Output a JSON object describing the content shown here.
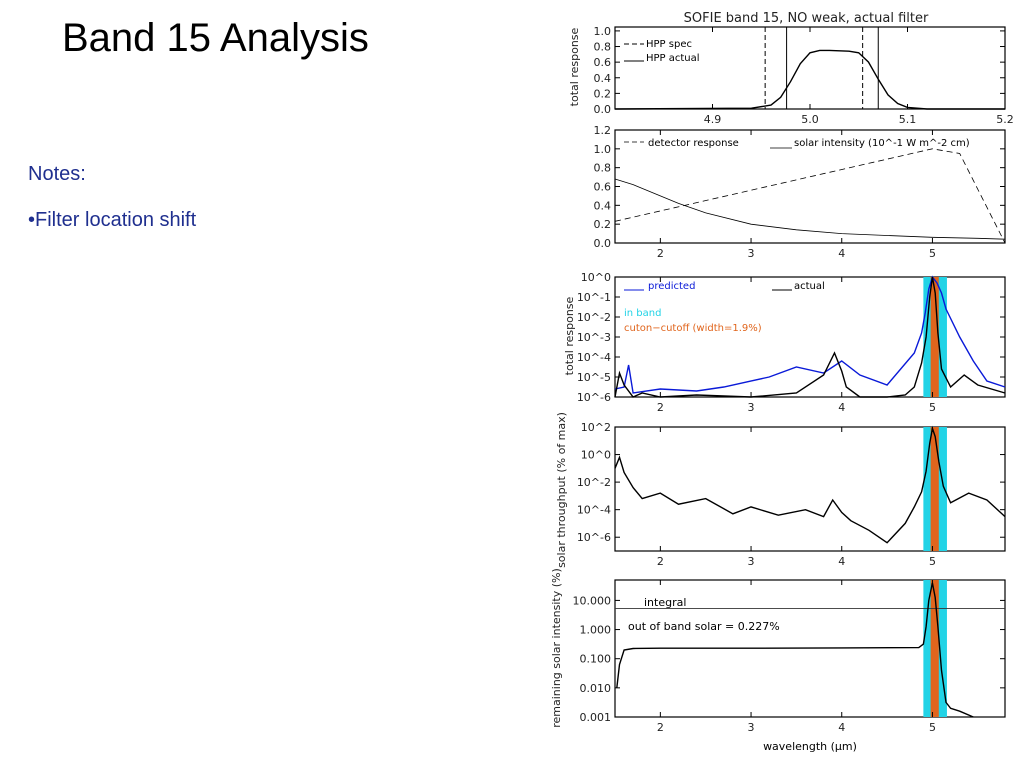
{
  "slide": {
    "title": "Band 15 Analysis",
    "notes_heading": "Notes:",
    "notes_bullet": "•Filter location shift"
  },
  "colors": {
    "predicted": "#0a1ad8",
    "in_band": "#22d3e6",
    "cutoff": "#e0651d",
    "actual": "#000000"
  },
  "chart_data": [
    {
      "type": "line",
      "title": "SOFIE band 15, NO weak, actual filter",
      "ylabel": "total response",
      "xlim": [
        4.8,
        5.2
      ],
      "ylim": [
        0,
        1.05
      ],
      "xticks": [
        "4.9",
        "5.0",
        "5.1",
        "5.2"
      ],
      "yticks": [
        "0.0",
        "0.2",
        "0.4",
        "0.6",
        "0.8",
        "1.0"
      ],
      "legend": [
        "HPP spec",
        "HPP actual"
      ],
      "vlines": {
        "spec": [
          4.954,
          5.054
        ],
        "actual": [
          4.976,
          5.07
        ]
      },
      "series": [
        {
          "name": "HPP actual",
          "x": [
            4.8,
            4.94,
            4.96,
            4.97,
            4.98,
            4.99,
            5.0,
            5.01,
            5.02,
            5.04,
            5.05,
            5.06,
            5.07,
            5.08,
            5.09,
            5.1,
            5.12,
            5.2
          ],
          "y": [
            0,
            0.01,
            0.05,
            0.15,
            0.35,
            0.58,
            0.72,
            0.75,
            0.75,
            0.74,
            0.72,
            0.6,
            0.38,
            0.18,
            0.07,
            0.02,
            0,
            0
          ]
        }
      ]
    },
    {
      "type": "line",
      "xlim": [
        1.5,
        5.8
      ],
      "ylim": [
        0,
        1.2
      ],
      "xticks": [
        "2",
        "3",
        "4",
        "5"
      ],
      "yticks": [
        "0.0",
        "0.2",
        "0.4",
        "0.6",
        "0.8",
        "1.0",
        "1.2"
      ],
      "legend": [
        "detector response",
        "solar intensity (10^-1 W m^-2 cm)"
      ],
      "series": [
        {
          "name": "detector response",
          "x": [
            1.5,
            5.0,
            5.3,
            5.8
          ],
          "y": [
            0.23,
            1.0,
            0.95,
            0.0
          ]
        },
        {
          "name": "solar intensity",
          "x": [
            1.5,
            1.7,
            2.0,
            2.2,
            2.5,
            3.0,
            3.5,
            4.0,
            4.5,
            5.0,
            5.5,
            5.8
          ],
          "y": [
            0.68,
            0.62,
            0.5,
            0.42,
            0.32,
            0.2,
            0.14,
            0.1,
            0.08,
            0.06,
            0.05,
            0.04
          ]
        }
      ]
    },
    {
      "type": "line",
      "ylabel": "total response",
      "scale": "log",
      "xlim": [
        1.5,
        5.8
      ],
      "ylim_exp": [
        -6,
        0
      ],
      "xticks": [
        "2",
        "3",
        "4",
        "5"
      ],
      "yticks": [
        "10^0",
        "10^-1",
        "10^-2",
        "10^-3",
        "10^-4",
        "10^-5",
        "10^-6"
      ],
      "legend": [
        "predicted",
        "actual"
      ],
      "labels": [
        "in band",
        "cuton−cutoff (width=1.9%)"
      ],
      "band": [
        4.9,
        5.16
      ],
      "cutoff": [
        4.98,
        5.07
      ],
      "series": [
        {
          "name": "predicted",
          "x": [
            1.5,
            1.6,
            1.65,
            1.7,
            2.0,
            2.4,
            2.7,
            3.2,
            3.5,
            3.8,
            4.0,
            4.2,
            4.5,
            4.8,
            4.88,
            4.92,
            4.96,
            5.0,
            5.05,
            5.1,
            5.15,
            5.3,
            5.45,
            5.6,
            5.8
          ],
          "y": [
            -5.6,
            -5.5,
            -4.4,
            -5.8,
            -5.6,
            -5.7,
            -5.5,
            -5.0,
            -4.5,
            -4.8,
            -4.2,
            -4.9,
            -5.4,
            -3.8,
            -2.8,
            -1.8,
            -0.6,
            0,
            -0.3,
            -0.8,
            -1.6,
            -3.0,
            -4.2,
            -5.2,
            -5.5
          ]
        },
        {
          "name": "actual",
          "x": [
            1.5,
            1.55,
            1.6,
            1.7,
            1.8,
            2.0,
            2.4,
            3.0,
            3.5,
            3.8,
            3.92,
            4.0,
            4.05,
            4.2,
            4.5,
            4.7,
            4.8,
            4.88,
            4.93,
            4.97,
            5.0,
            5.03,
            5.06,
            5.1,
            5.2,
            5.35,
            5.5,
            5.8
          ],
          "y": [
            -6.0,
            -4.8,
            -5.4,
            -6.0,
            -5.8,
            -6.0,
            -5.9,
            -6.0,
            -5.8,
            -4.9,
            -3.8,
            -4.7,
            -5.5,
            -6.0,
            -6.0,
            -5.9,
            -5.5,
            -4.3,
            -3.0,
            -1.0,
            0,
            -0.8,
            -2.8,
            -4.6,
            -5.5,
            -4.9,
            -5.4,
            -5.8
          ]
        }
      ]
    },
    {
      "type": "line",
      "ylabel": "solar throughput (% of max)",
      "scale": "log",
      "xlim": [
        1.5,
        5.8
      ],
      "ylim_exp": [
        -7,
        2
      ],
      "xticks": [
        "2",
        "3",
        "4",
        "5"
      ],
      "yticks": [
        "10^2",
        "10^0",
        "10^-2",
        "10^-4",
        "10^-6"
      ],
      "band": [
        4.9,
        5.16
      ],
      "cutoff": [
        4.98,
        5.07
      ],
      "series": [
        {
          "name": "actual",
          "x": [
            1.5,
            1.55,
            1.6,
            1.7,
            1.8,
            2.0,
            2.2,
            2.5,
            2.8,
            3.0,
            3.3,
            3.6,
            3.8,
            3.9,
            4.0,
            4.1,
            4.3,
            4.5,
            4.7,
            4.8,
            4.88,
            4.93,
            4.97,
            5.0,
            5.03,
            5.07,
            5.12,
            5.2,
            5.4,
            5.6,
            5.8
          ],
          "y": [
            -1.0,
            -0.2,
            -1.3,
            -2.4,
            -3.2,
            -2.8,
            -3.6,
            -3.2,
            -4.3,
            -3.8,
            -4.4,
            -4.0,
            -4.5,
            -3.3,
            -4.2,
            -4.8,
            -5.5,
            -6.4,
            -5.0,
            -3.8,
            -2.7,
            -1.2,
            0.8,
            1.9,
            1.3,
            -0.5,
            -2.3,
            -3.5,
            -2.8,
            -3.3,
            -4.5
          ]
        }
      ]
    },
    {
      "type": "line",
      "ylabel": "remaining solar intensity (%)",
      "xlabel": "wavelength (μm)",
      "scale": "log",
      "xlim": [
        1.5,
        5.8
      ],
      "ylim_exp": [
        -3,
        1.7
      ],
      "xticks": [
        "2",
        "3",
        "4",
        "5"
      ],
      "yticks": [
        "10.000",
        "1.000",
        "0.100",
        "0.010",
        "0.001"
      ],
      "labels": [
        "integral",
        "out of band solar = 0.227%"
      ],
      "integral_level_exp": 0.72,
      "band": [
        4.9,
        5.16
      ],
      "cutoff": [
        4.98,
        5.07
      ],
      "series": [
        {
          "name": "actual",
          "x": [
            1.52,
            1.55,
            1.6,
            1.7,
            2.0,
            3.0,
            4.0,
            4.85,
            4.9,
            4.93,
            4.96,
            5.0,
            5.03,
            5.06,
            5.1,
            5.15,
            5.2,
            5.3,
            5.45
          ],
          "y": [
            -2.0,
            -1.2,
            -0.7,
            -0.65,
            -0.64,
            -0.64,
            -0.63,
            -0.62,
            -0.5,
            0.1,
            1.0,
            1.6,
            1.1,
            0.1,
            -1.4,
            -2.5,
            -2.7,
            -2.8,
            -3.0
          ]
        }
      ]
    }
  ]
}
